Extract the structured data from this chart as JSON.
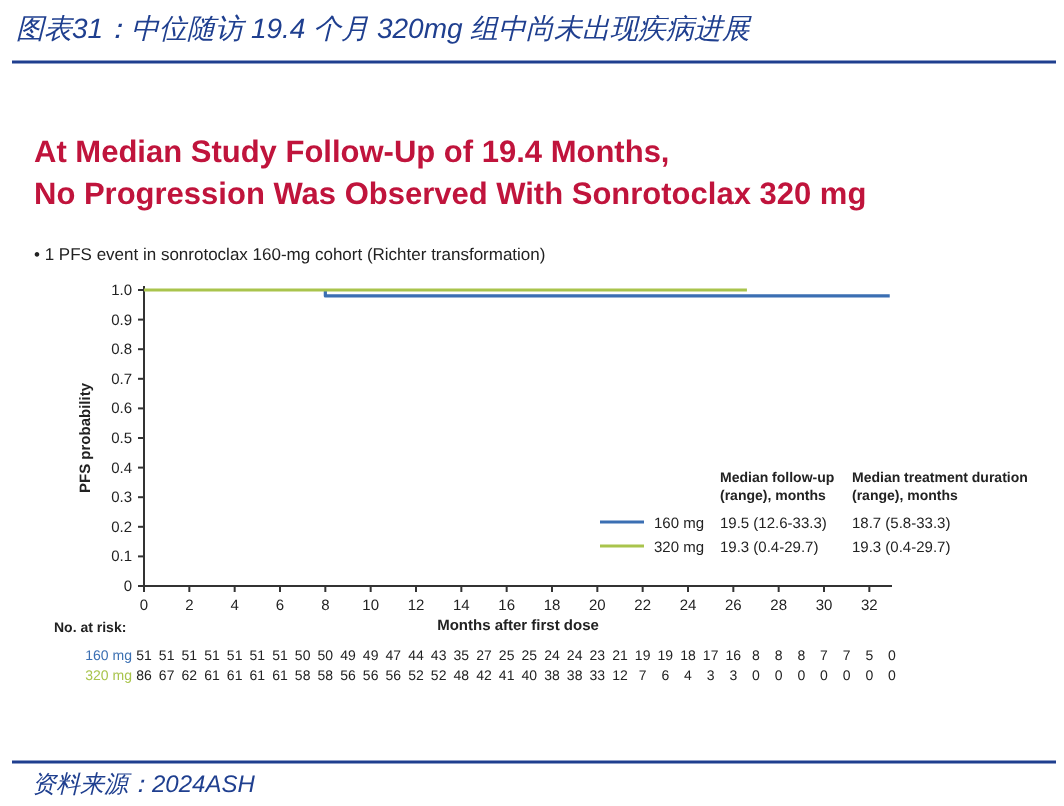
{
  "chart_data": {
    "type": "step",
    "title": "图表31：中位随访 19.4 个月 320mg 组中尚未出现疾病进展",
    "subtitle": "At Median Study Follow-Up of 19.4 Months,\nNo Progression Was Observed With Sonrotoclax 320 mg",
    "xlabel": "Months after first dose",
    "ylabel": "PFS probability",
    "series": [
      {
        "name": "160 mg",
        "color": "#3b6fb3",
        "x": [
          8,
          8,
          32.9
        ],
        "values": [
          1.0,
          0.98,
          0.98
        ]
      },
      {
        "name": "320 mg",
        "color": "#a9c44c",
        "x": [
          0,
          26.6
        ],
        "values": [
          1.0,
          1.0
        ]
      }
    ],
    "xlim": [
      0,
      33
    ],
    "xticks": [
      0,
      2,
      4,
      6,
      8,
      10,
      12,
      14,
      16,
      18,
      20,
      22,
      24,
      26,
      28,
      30,
      32
    ],
    "ylim": [
      0,
      1
    ],
    "yticks": [
      {
        "value": 0,
        "label": "0"
      },
      0.1,
      0.2,
      0.3,
      0.4,
      0.5,
      0.6,
      0.7,
      0.8,
      0.9,
      {
        "value": 1,
        "label": "1.0"
      }
    ],
    "legend": "bottom right",
    "grid": false,
    "annotations": [
      "•  1 PFS event in sonrotoclax 160-mg cohort (Richter transformation)",
      "Median follow-up\n(range), months",
      "Median treatment duration\n(range), months",
      "19.5 (12.6-33.3)",
      "18.7 (5.8-33.3)",
      "19.3 (0.4-29.7)",
      "19.3 (0.4-29.7)",
      "No. at risk:",
      "51 51 51 51 51 51 51 50 50 49 49 47 44 43 35 27 25 25 24 24 23 21 19 19 18 17 16 8 8 8 7 7 5 0",
      "86 67 62 61 61 61 61 58 58 56 56 56 52 52 48 42 41 40 38 38 33 12 7 6 4 3 3 0 0 0 0 0 0 0",
      "资料来源：2024ASH"
    ]
  }
}
